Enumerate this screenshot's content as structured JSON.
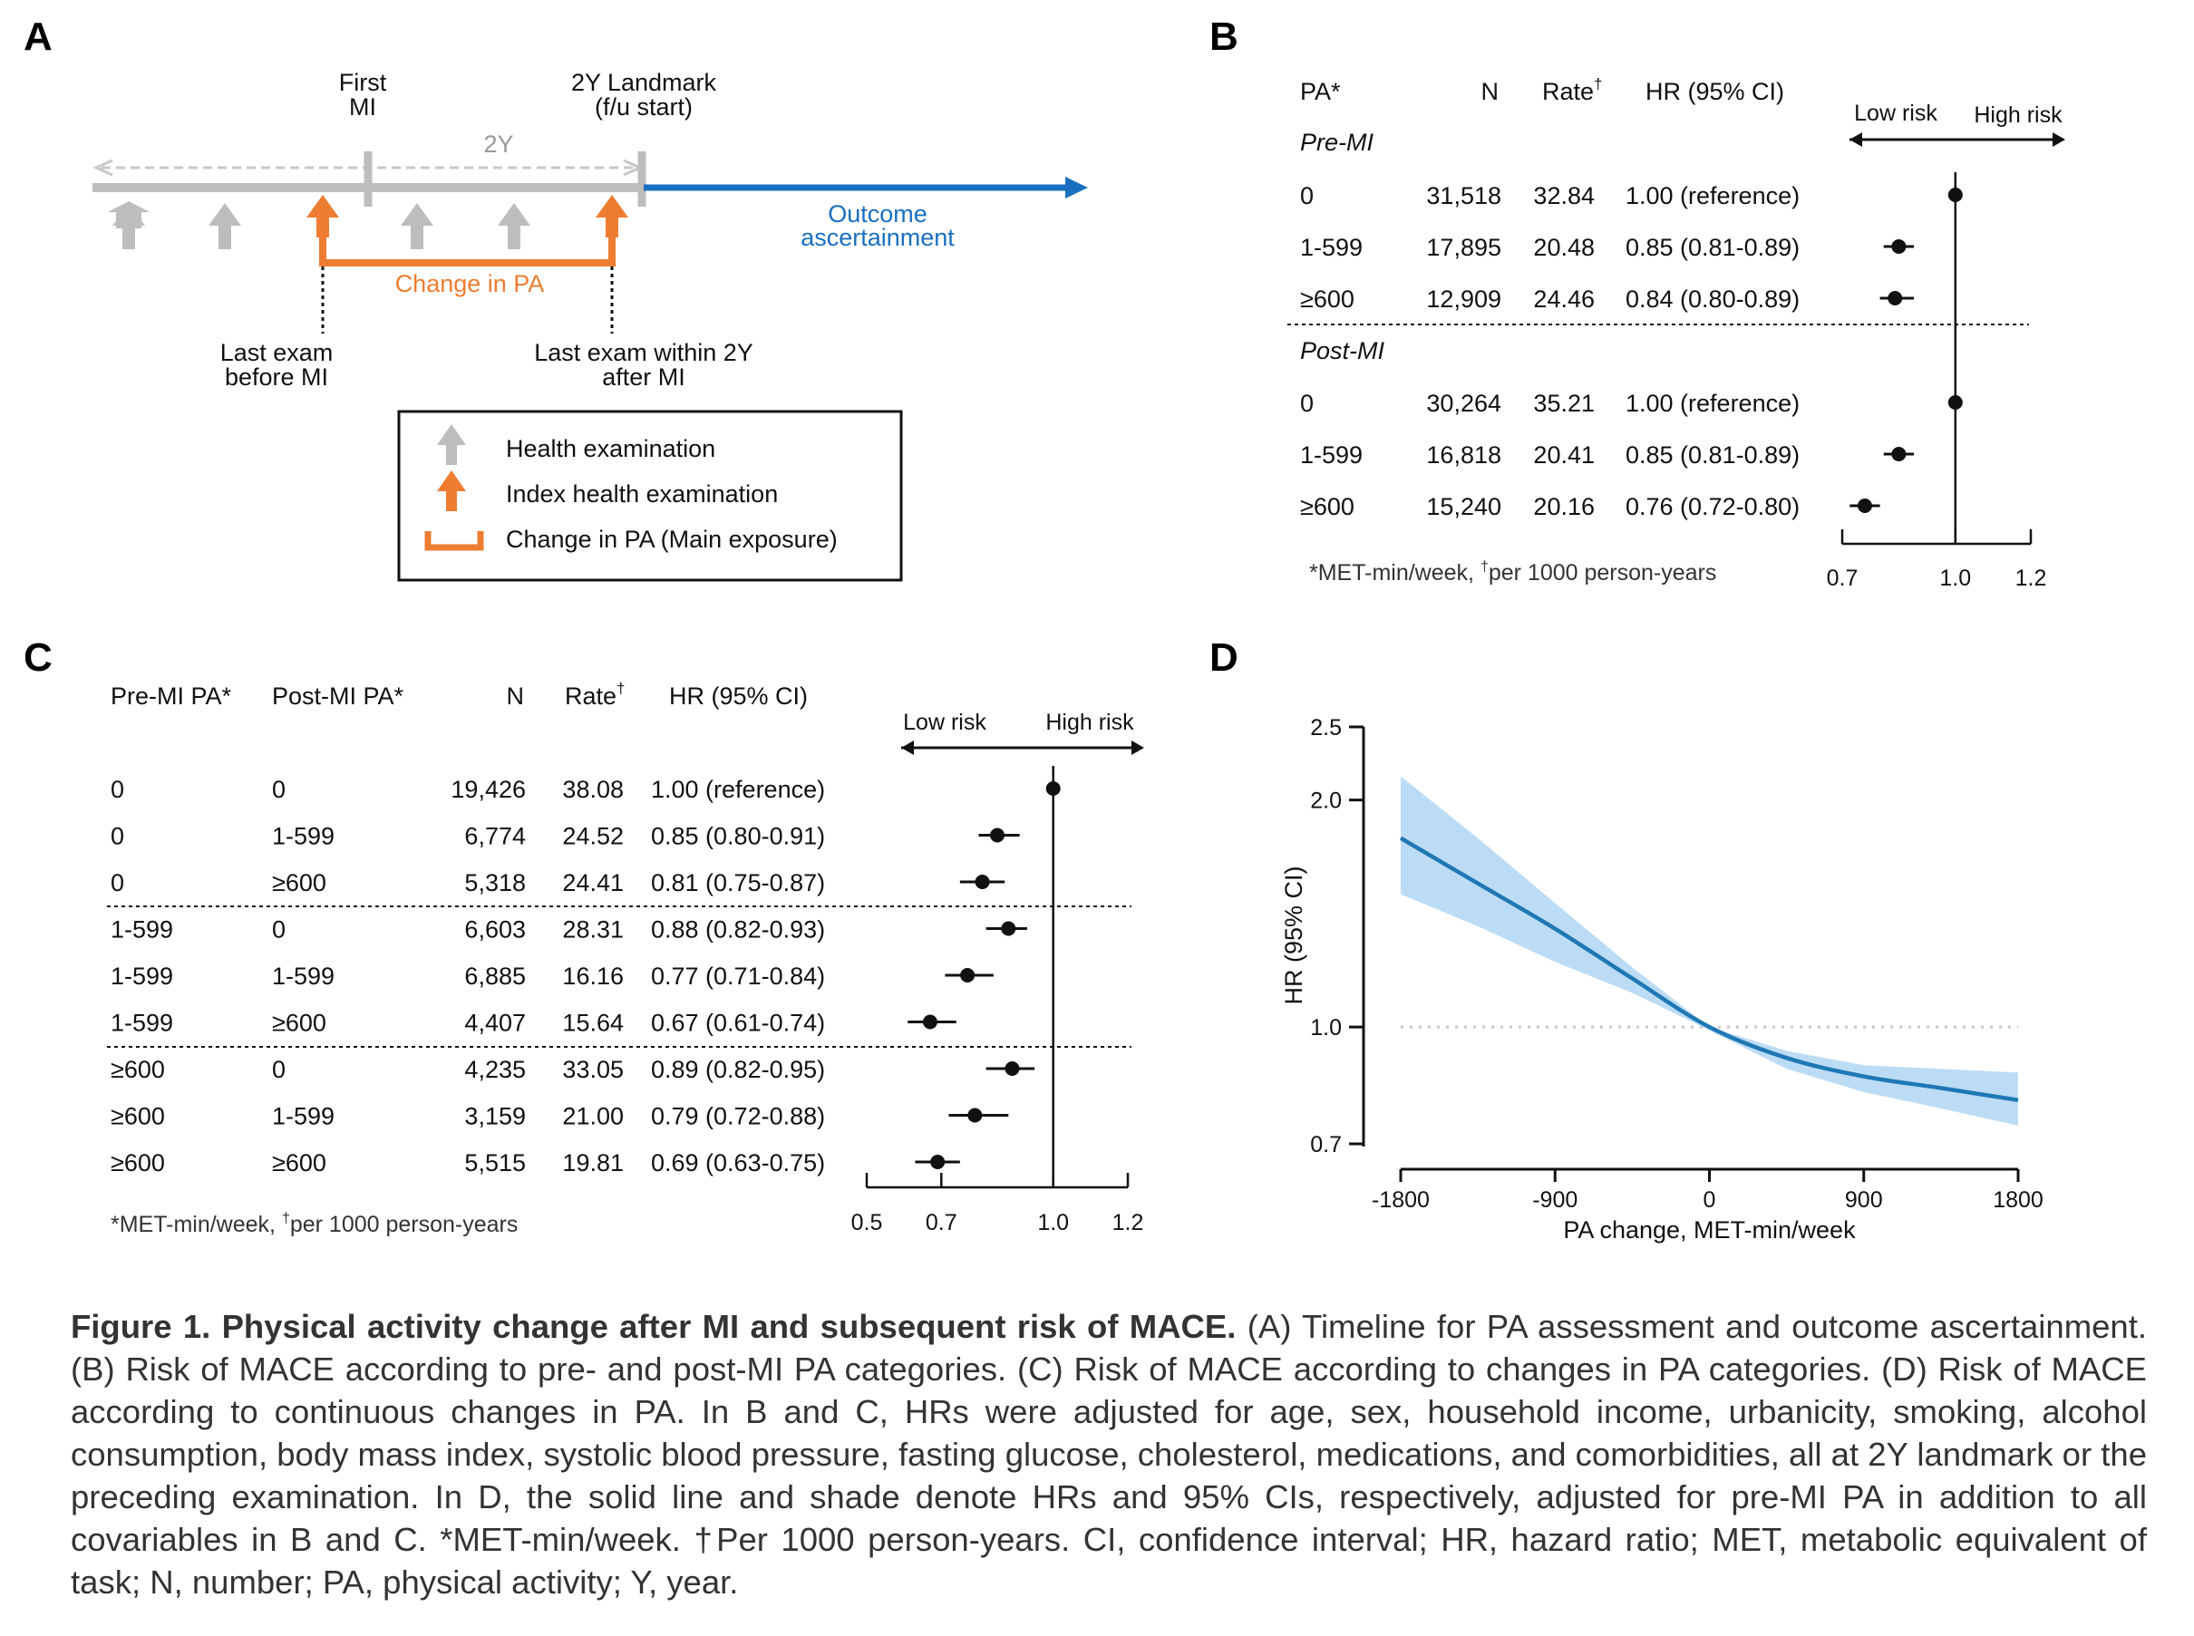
{
  "panel_labels": {
    "a": "A",
    "b": "B",
    "c": "C",
    "d": "D"
  },
  "panel_a": {
    "first_mi": [
      "First",
      "MI"
    ],
    "landmark": [
      "2Y Landmark",
      "(f/u start)"
    ],
    "two_y": "2Y",
    "outcome": [
      "Outcome",
      "ascertainment"
    ],
    "change_in_pa": "Change in PA",
    "last_exam_before": [
      "Last exam",
      "before MI"
    ],
    "last_exam_within": [
      "Last exam within 2Y",
      "after MI"
    ],
    "legend": [
      "Health examination",
      "Index health examination",
      "Change in PA (Main exposure)"
    ],
    "colors": {
      "gray": "#bdbdbd",
      "orange": "#ee7d31",
      "blue": "#1a6fc0"
    }
  },
  "panel_b": {
    "headers": {
      "pa": "PA*",
      "n": "N",
      "rate": "Rate",
      "dagger": "†",
      "hr": "HR (95% CI)"
    },
    "risk_low": "Low risk",
    "risk_high": "High risk",
    "groups": [
      {
        "label": "Pre-MI",
        "rows": [
          {
            "pa": "0",
            "n": "31,518",
            "rate": "32.84",
            "hr_text": "1.00 (reference)",
            "hr": 1.0,
            "lo": 1.0,
            "hi": 1.0
          },
          {
            "pa": "1-599",
            "n": "17,895",
            "rate": "20.48",
            "hr_text": "0.85 (0.81-0.89)",
            "hr": 0.85,
            "lo": 0.81,
            "hi": 0.89
          },
          {
            "pa": "≥600",
            "n": "12,909",
            "rate": "24.46",
            "hr_text": "0.84 (0.80-0.89)",
            "hr": 0.84,
            "lo": 0.8,
            "hi": 0.89
          }
        ]
      },
      {
        "label": "Post-MI",
        "rows": [
          {
            "pa": "0",
            "n": "30,264",
            "rate": "35.21",
            "hr_text": "1.00 (reference)",
            "hr": 1.0,
            "lo": 1.0,
            "hi": 1.0
          },
          {
            "pa": "1-599",
            "n": "16,818",
            "rate": "20.41",
            "hr_text": "0.85 (0.81-0.89)",
            "hr": 0.85,
            "lo": 0.81,
            "hi": 0.89
          },
          {
            "pa": "≥600",
            "n": "15,240",
            "rate": "20.16",
            "hr_text": "0.76 (0.72-0.80)",
            "hr": 0.76,
            "lo": 0.72,
            "hi": 0.8
          }
        ]
      }
    ],
    "axis_ticks": [
      "0.7",
      "1.0",
      "1.2"
    ],
    "axis_range": [
      0.7,
      1.2
    ],
    "footnote_a": "*MET-min/week, ",
    "footnote_dagger": "†",
    "footnote_b": "per 1000 person-years"
  },
  "panel_c": {
    "headers": {
      "pre": "Pre-MI PA*",
      "post": "Post-MI PA*",
      "n": "N",
      "rate": "Rate",
      "dagger": "†",
      "hr": "HR (95% CI)"
    },
    "risk_low": "Low risk",
    "risk_high": "High risk",
    "rows": [
      {
        "pre": "0",
        "post": "0",
        "n": "19,426",
        "rate": "38.08",
        "hr_text": "1.00 (reference)",
        "hr": 1.0,
        "lo": 1.0,
        "hi": 1.0
      },
      {
        "pre": "0",
        "post": "1-599",
        "n": "6,774",
        "rate": "24.52",
        "hr_text": "0.85 (0.80-0.91)",
        "hr": 0.85,
        "lo": 0.8,
        "hi": 0.91
      },
      {
        "pre": "0",
        "post": "≥600",
        "n": "5,318",
        "rate": "24.41",
        "hr_text": "0.81 (0.75-0.87)",
        "hr": 0.81,
        "lo": 0.75,
        "hi": 0.87
      },
      {
        "pre": "1-599",
        "post": "0",
        "n": "6,603",
        "rate": "28.31",
        "hr_text": "0.88 (0.82-0.93)",
        "hr": 0.88,
        "lo": 0.82,
        "hi": 0.93
      },
      {
        "pre": "1-599",
        "post": "1-599",
        "n": "6,885",
        "rate": "16.16",
        "hr_text": "0.77 (0.71-0.84)",
        "hr": 0.77,
        "lo": 0.71,
        "hi": 0.84
      },
      {
        "pre": "1-599",
        "post": "≥600",
        "n": "4,407",
        "rate": "15.64",
        "hr_text": "0.67 (0.61-0.74)",
        "hr": 0.67,
        "lo": 0.61,
        "hi": 0.74
      },
      {
        "pre": "≥600",
        "post": "0",
        "n": "4,235",
        "rate": "33.05",
        "hr_text": "0.89 (0.82-0.95)",
        "hr": 0.89,
        "lo": 0.82,
        "hi": 0.95
      },
      {
        "pre": "≥600",
        "post": "1-599",
        "n": "3,159",
        "rate": "21.00",
        "hr_text": "0.79 (0.72-0.88)",
        "hr": 0.79,
        "lo": 0.72,
        "hi": 0.88
      },
      {
        "pre": "≥600",
        "post": "≥600",
        "n": "5,515",
        "rate": "19.81",
        "hr_text": "0.69 (0.63-0.75)",
        "hr": 0.69,
        "lo": 0.63,
        "hi": 0.75
      }
    ],
    "axis_ticks": [
      "0.5",
      "0.7",
      "1.0",
      "1.2"
    ],
    "axis_range": [
      0.5,
      1.2
    ],
    "footnote_a": "*MET-min/week, ",
    "footnote_dagger": "†",
    "footnote_b": "per 1000 person-years"
  },
  "chart_data": {
    "type": "line",
    "title": "",
    "xlabel": "PA change, MET-min/week",
    "ylabel": "HR (95% CI)",
    "xlim": [
      -1800,
      1800
    ],
    "ylim": [
      0.7,
      2.5
    ],
    "yscale": "log",
    "x_ticks": [
      "-1800",
      "-900",
      "0",
      "900",
      "1800"
    ],
    "y_ticks": [
      "0.7",
      "1.0",
      "2.0",
      "2.5"
    ],
    "reference_line": 1.0,
    "series": [
      {
        "name": "HR",
        "x": [
          -1800,
          -1350,
          -900,
          -450,
          0,
          450,
          900,
          1350,
          1800
        ],
        "values": [
          1.78,
          1.55,
          1.35,
          1.16,
          1.0,
          0.91,
          0.86,
          0.83,
          0.8
        ]
      },
      {
        "name": "95% CI upper",
        "x": [
          -1800,
          -1350,
          -900,
          -450,
          0,
          450,
          900,
          1350,
          1800
        ],
        "values": [
          2.15,
          1.78,
          1.46,
          1.2,
          1.0,
          0.93,
          0.89,
          0.88,
          0.87
        ]
      },
      {
        "name": "95% CI lower",
        "x": [
          -1800,
          -1350,
          -900,
          -450,
          0,
          450,
          900,
          1350,
          1800
        ],
        "values": [
          1.5,
          1.36,
          1.22,
          1.11,
          0.99,
          0.88,
          0.82,
          0.78,
          0.74
        ]
      }
    ],
    "colors": {
      "line": "#1f78b4",
      "band": "#bcdcf5",
      "ref": "#c8c8c8"
    }
  },
  "caption": {
    "title": "Figure 1. Physical activity change after MI and subsequent risk of MACE.",
    "body": " (A) Timeline for PA assessment and outcome ascertainment. (B) Risk of MACE according to pre- and post-MI PA categories. (C) Risk of MACE according to changes in PA categories. (D) Risk of MACE according to continuous changes in PA. In B and C, HRs were adjusted for age, sex, household income, urbanicity, smoking, alcohol consumption, body mass index, systolic blood pressure, fasting glucose, cholesterol, medications, and comorbidities, all at 2Y landmark or the preceding examination. In D, the solid line and shade denote HRs and 95% CIs, respectively, adjusted for pre-MI PA in addition to all covariables in B and C. *MET-min/week. †Per 1000 person-years. CI, confidence interval; HR, hazard ratio; MET, metabolic equivalent of task; N, number; PA, physical activity; Y, year."
  }
}
